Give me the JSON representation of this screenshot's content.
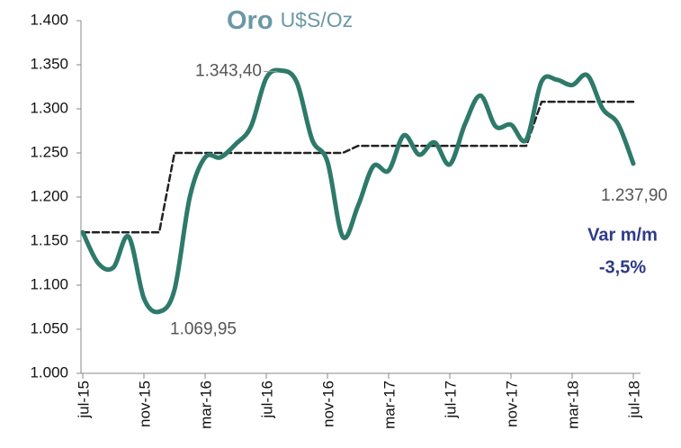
{
  "chart_data": {
    "type": "line",
    "title": "Oro",
    "subtitle": "U$S/Oz",
    "categories": [
      "jul-15",
      null,
      null,
      null,
      "nov-15",
      null,
      null,
      null,
      "mar-16",
      null,
      null,
      null,
      "jul-16",
      null,
      null,
      null,
      "nov-16",
      null,
      null,
      null,
      "mar-17",
      null,
      null,
      null,
      "jul-17",
      null,
      null,
      null,
      "nov-17",
      null,
      null,
      null,
      "mar-18",
      null,
      null,
      null,
      "jul-18"
    ],
    "series": [
      {
        "color": "#2e7a6a",
        "values": [
          1160,
          1125,
          1120,
          1155,
          1085,
          1069.95,
          1095,
          1200,
          1245,
          1245,
          1260,
          1280,
          1335,
          1343.4,
          1330,
          1265,
          1240,
          1155,
          1190,
          1235,
          1230,
          1270,
          1248,
          1262,
          1237,
          1283,
          1315,
          1280,
          1282,
          1265,
          1331,
          1333,
          1327,
          1338,
          1300,
          1283,
          1237.9
        ],
        "value_labels": [
          null,
          null,
          null,
          null,
          null,
          "1.069,95",
          null,
          null,
          null,
          null,
          null,
          null,
          null,
          "1.343,40",
          null,
          null,
          null,
          null,
          null,
          null,
          null,
          null,
          null,
          null,
          null,
          null,
          null,
          null,
          null,
          null,
          null,
          null,
          null,
          null,
          null,
          null,
          "1.237,90"
        ]
      },
      {
        "color": "#222222",
        "dashed": true,
        "values": [
          1160,
          1160,
          1160,
          1160,
          1160,
          1160,
          1250,
          1250,
          1250,
          1250,
          1250,
          1250,
          1250,
          1250,
          1250,
          1250,
          1250,
          1250,
          1258,
          1258,
          1258,
          1258,
          1258,
          1258,
          1258,
          1258,
          1258,
          1258,
          1258,
          1258,
          1308,
          1308,
          1308,
          1308,
          1308,
          1308,
          1308
        ]
      }
    ],
    "ylim": [
      1000,
      1400
    ],
    "yticks": [
      {
        "value": 1000,
        "label": "1.000"
      },
      {
        "value": 1050,
        "label": "1.050"
      },
      {
        "value": 1100,
        "label": "1.100"
      },
      {
        "value": 1150,
        "label": "1.150"
      },
      {
        "value": 1200,
        "label": "1.200"
      },
      {
        "value": 1250,
        "label": "1.250"
      },
      {
        "value": 1300,
        "label": "1.300"
      },
      {
        "value": 1350,
        "label": "1.350"
      },
      {
        "value": 1400,
        "label": "1.400"
      }
    ],
    "annotations": [
      "Var m/m",
      "-3,5%"
    ]
  }
}
